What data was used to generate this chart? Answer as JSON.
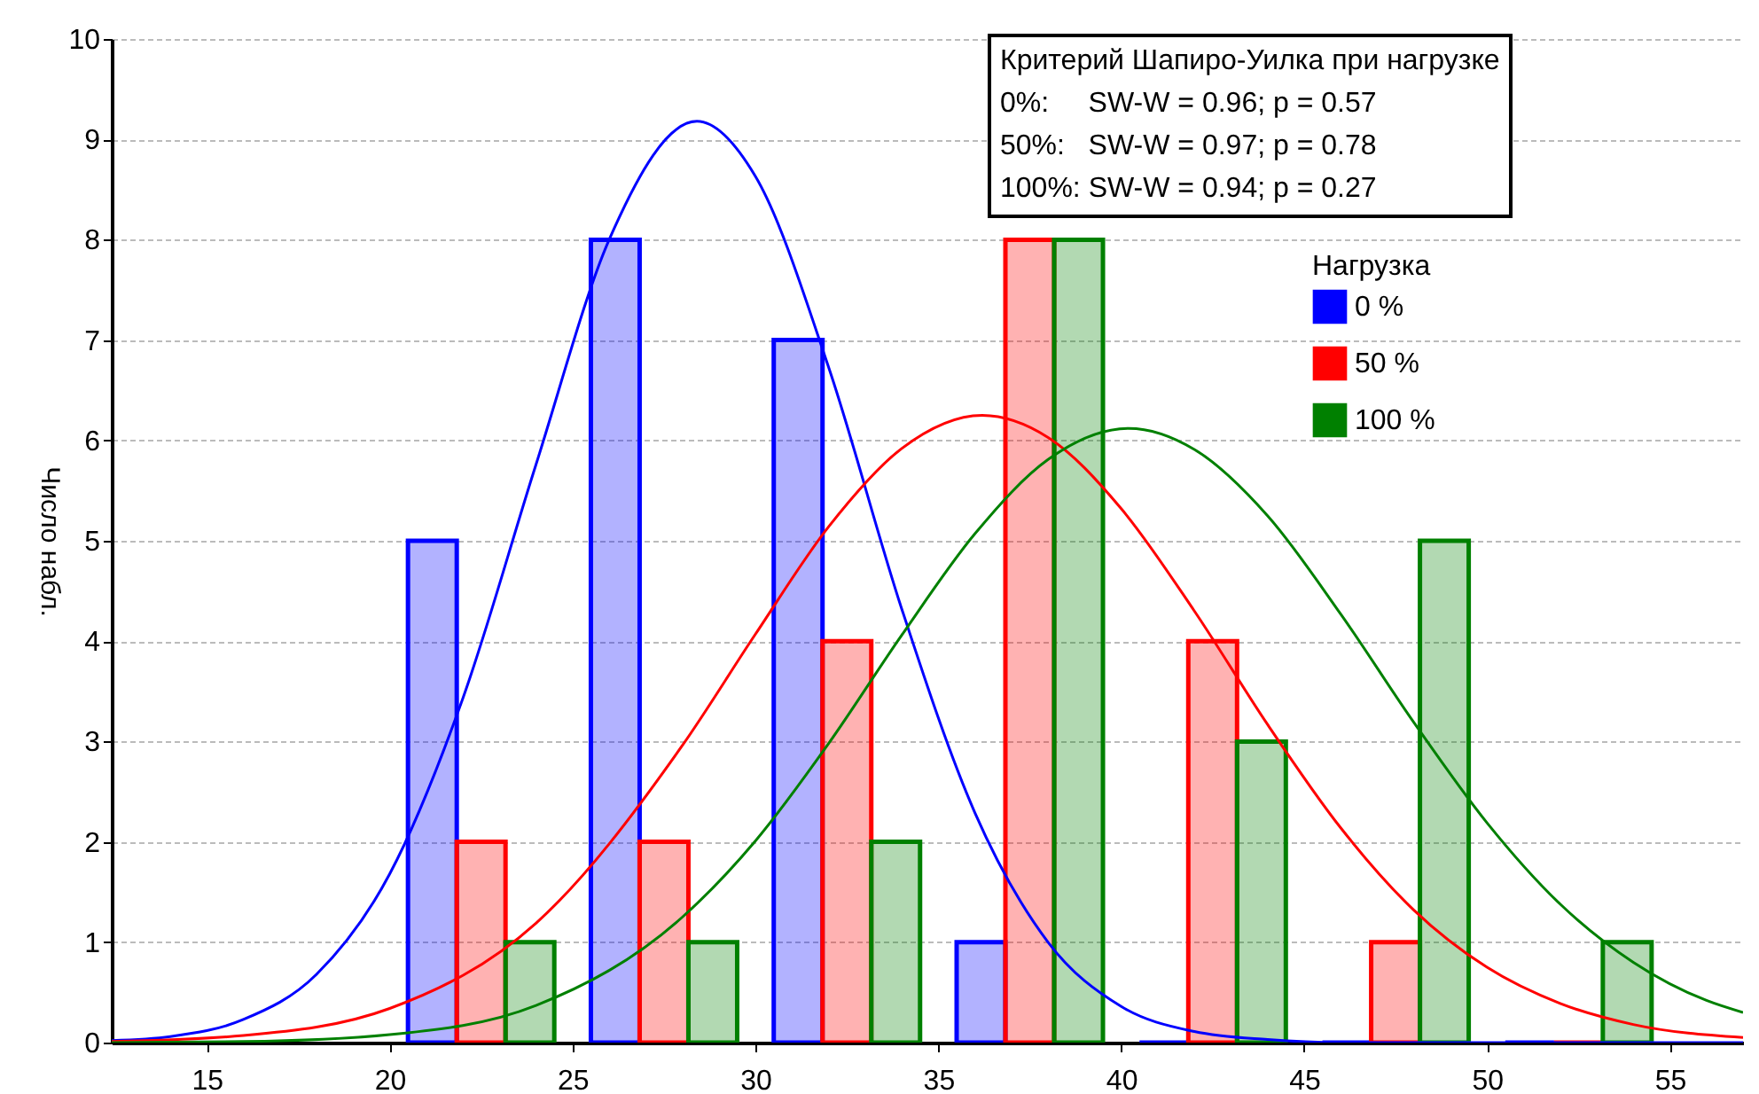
{
  "chart_data": {
    "type": "histogram",
    "ylabel": "Число набл.",
    "legend_title": "Нагрузка",
    "annotations": [
      "Критерий Шапиро-Уилка при нагрузке",
      "0%:     SW-W = 0.96; p = 0.57",
      "50%:   SW-W = 0.97; p = 0.78",
      "100%: SW-W = 0.94; p = 0.27"
    ],
    "bins": [
      20,
      25,
      30,
      35,
      40,
      45,
      50,
      55
    ],
    "series": [
      {
        "name": "0 %",
        "color": "#0000ff",
        "values": [
          5,
          8,
          7,
          1,
          0,
          0,
          0
        ]
      },
      {
        "name": "50 %",
        "color": "#ff0000",
        "values": [
          2,
          2,
          4,
          8,
          4,
          1,
          0
        ]
      },
      {
        "name": "100 %",
        "color": "#008000",
        "values": [
          1,
          1,
          2,
          8,
          3,
          5,
          1
        ]
      },
      {
        "type": "line",
        "color": "#0000ff",
        "x": [
          12.4,
          14,
          16,
          18,
          20,
          22,
          24,
          26,
          28.4,
          30,
          32,
          34,
          36,
          38,
          40,
          42,
          44,
          46,
          50,
          57
        ],
        "values": [
          0.02,
          0.06,
          0.23,
          0.68,
          1.68,
          3.43,
          5.76,
          8.0,
          9.18,
          8.63,
          6.73,
          4.32,
          2.29,
          1.0,
          0.36,
          0.11,
          0.03,
          0.0,
          0.0,
          0.0
        ]
      },
      {
        "type": "line",
        "color": "#ff0000",
        "x": [
          12.4,
          16,
          20,
          24,
          28,
          30,
          32,
          34,
          36.2,
          38,
          40,
          42,
          44,
          46,
          48,
          50,
          52,
          54,
          57
        ],
        "values": [
          0.01,
          0.07,
          0.34,
          1.19,
          2.96,
          4.07,
          5.14,
          5.92,
          6.25,
          6.03,
          5.32,
          4.3,
          3.17,
          2.14,
          1.32,
          0.75,
          0.39,
          0.18,
          0.05
        ]
      },
      {
        "type": "line",
        "color": "#008000",
        "x": [
          12.4,
          16,
          20,
          24,
          28,
          30,
          32,
          34,
          36,
          38,
          40.2,
          42,
          44,
          46,
          48,
          50,
          52,
          54,
          56,
          57
        ],
        "values": [
          0.0,
          0.01,
          0.08,
          0.37,
          1.25,
          2.01,
          2.98,
          4.06,
          5.07,
          5.81,
          6.12,
          5.91,
          5.25,
          4.27,
          3.19,
          2.19,
          1.38,
          0.8,
          0.42,
          0.3
        ]
      }
    ],
    "xlim": [
      12.4,
      57
    ],
    "ylim": [
      0,
      10
    ],
    "xticks": [
      15,
      20,
      25,
      30,
      35,
      40,
      45,
      50,
      55
    ],
    "yticks": [
      0,
      1,
      2,
      3,
      4,
      5,
      6,
      7,
      8,
      9,
      10
    ],
    "grid": "y",
    "legend": "top right",
    "line_style": "solid"
  }
}
